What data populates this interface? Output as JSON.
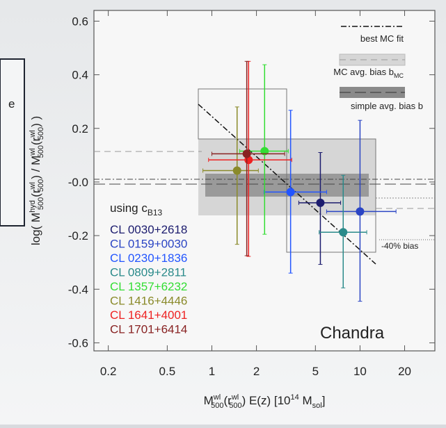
{
  "chart_data": {
    "type": "scatter",
    "x_scale": "log",
    "xlim": [
      0.16,
      32
    ],
    "ylim": [
      -0.63,
      0.64
    ],
    "xticks": [
      0.2,
      0.5,
      1,
      2,
      5,
      10,
      20
    ],
    "yticks": [
      0.6,
      0.4,
      0.2,
      {
        "value": 0,
        "label": "-0.0"
      },
      -0.2,
      -0.4,
      -0.6
    ],
    "y_label_parts": [
      "log( M",
      "hyd",
      "500",
      "(r",
      "wl",
      "500",
      ") / M",
      "wl",
      "500",
      "(r",
      "wl",
      "500",
      ") )"
    ],
    "x_label_parts": [
      "M",
      "wl",
      "500",
      "(r",
      "wl",
      "500",
      ") E(z)  [10",
      "14",
      " M",
      "sol",
      "]"
    ],
    "legend_entries": [
      "best MC fit",
      "MC avg. bias b",
      "MC",
      "simple avg. bias b"
    ],
    "annotations": {
      "concentration": "using c",
      "concentration_sub": "B13",
      "bias": "-40% bias",
      "instrument": "Chandra",
      "overlay": "e"
    },
    "series": [
      {
        "name": "CL 0030+2618",
        "color": "#1c1c6e",
        "x": [
          5.4
        ],
        "values": [
          -0.0775
        ],
        "xlow": [
          3.86
        ],
        "xhigh": [
          7.4
        ],
        "ylow": [
          -0.3075
        ],
        "yhigh": [
          0.11
        ]
      },
      {
        "name": "CL 0159+0030",
        "color": "#2b45c4",
        "x": [
          10
        ],
        "values": [
          -0.11
        ],
        "xlow": [
          5.95
        ],
        "xhigh": [
          17.5
        ],
        "ylow": [
          -0.445
        ],
        "yhigh": [
          0.23
        ]
      },
      {
        "name": "CL 0230+1836",
        "color": "#2255ff",
        "x": [
          3.4
        ],
        "values": [
          -0.0375
        ],
        "xlow": [
          2.25
        ],
        "xhigh": [
          5.95
        ],
        "ylow": [
          -0.34
        ],
        "yhigh": [
          0.2675
        ]
      },
      {
        "name": "CL 0809+2811",
        "color": "#2a8a8a",
        "x": [
          7.7
        ],
        "values": [
          -0.1875
        ],
        "xlow": [
          5.3
        ],
        "xhigh": [
          11.1
        ],
        "ylow": [
          -0.395
        ],
        "yhigh": [
          0.025
        ]
      },
      {
        "name": "CL 1357+6232",
        "color": "#33dd33",
        "x": [
          2.27
        ],
        "values": [
          0.115
        ],
        "xlow": [
          1.54
        ],
        "xhigh": [
          3.28
        ],
        "ylow": [
          -0.195
        ],
        "yhigh": [
          0.4375
        ]
      },
      {
        "name": "CL 1416+4446",
        "color": "#8a8a2a",
        "x": [
          1.48
        ],
        "values": [
          0.0425
        ],
        "xlow": [
          0.87
        ],
        "xhigh": [
          2.06
        ],
        "ylow": [
          -0.2325
        ],
        "yhigh": [
          0.28
        ]
      },
      {
        "name": "CL 1641+4001",
        "color": "#ee2222",
        "x": [
          1.77
        ],
        "values": [
          0.0825
        ],
        "xlow": [
          0.95
        ],
        "xhigh": [
          3.46
        ],
        "ylow": [
          -0.2775
        ],
        "yhigh": [
          0.45
        ]
      },
      {
        "name": "CL 1701+6414",
        "color": "#882222",
        "x": [
          1.72
        ],
        "values": [
          0.105
        ],
        "xlow": [
          1.0
        ],
        "xhigh": [
          3.1
        ],
        "ylow": [
          -0.275
        ],
        "yhigh": [
          0.45
        ]
      }
    ]
  }
}
